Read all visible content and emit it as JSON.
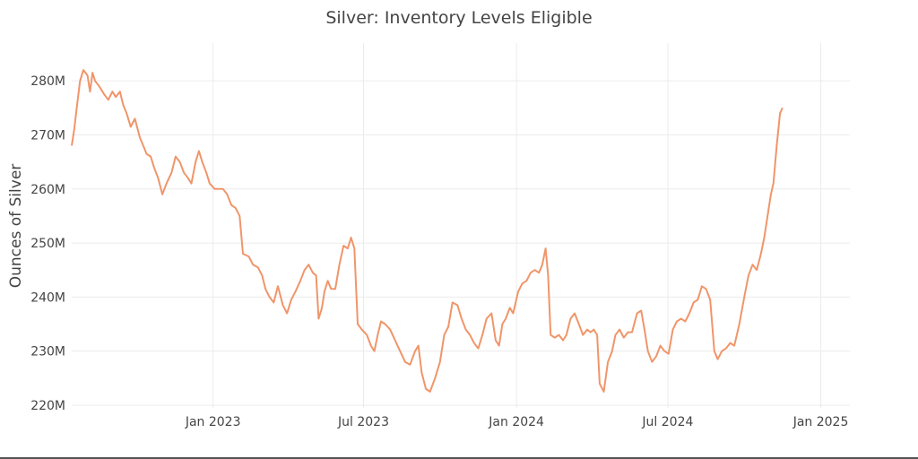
{
  "chart_data": {
    "type": "line",
    "title": "Silver: Inventory Levels Eligible",
    "xlabel": "",
    "ylabel": "Ounces of Silver",
    "ylim": [
      219500000,
      285000000
    ],
    "xlim": [
      "2022-07-15",
      "2025-02-05"
    ],
    "yticks": [
      {
        "value": 220000000,
        "label": "220M"
      },
      {
        "value": 230000000,
        "label": "230M"
      },
      {
        "value": 240000000,
        "label": "240M"
      },
      {
        "value": 250000000,
        "label": "250M"
      },
      {
        "value": 260000000,
        "label": "260M"
      },
      {
        "value": 270000000,
        "label": "270M"
      },
      {
        "value": 280000000,
        "label": "280M"
      }
    ],
    "xticks": [
      {
        "value": "2023-01-01",
        "label": "Jan 2023"
      },
      {
        "value": "2023-07-01",
        "label": "Jul 2023"
      },
      {
        "value": "2024-01-01",
        "label": "Jan 2024"
      },
      {
        "value": "2024-07-01",
        "label": "Jul 2024"
      },
      {
        "value": "2025-01-01",
        "label": "Jan 2025"
      }
    ],
    "grid": true,
    "legend": "none",
    "series": [
      {
        "color": "#f0956a",
        "points": [
          [
            "2022-07-15",
            268
          ],
          [
            "2022-07-18",
            271
          ],
          [
            "2022-07-21",
            275
          ],
          [
            "2022-07-25",
            280
          ],
          [
            "2022-07-29",
            282
          ],
          [
            "2022-08-03",
            281
          ],
          [
            "2022-08-06",
            278
          ],
          [
            "2022-08-09",
            281.5
          ],
          [
            "2022-08-12",
            280
          ],
          [
            "2022-08-17",
            279
          ],
          [
            "2022-08-23",
            277.5
          ],
          [
            "2022-08-28",
            276.5
          ],
          [
            "2022-09-02",
            278
          ],
          [
            "2022-09-06",
            277
          ],
          [
            "2022-09-11",
            278
          ],
          [
            "2022-09-15",
            275.5
          ],
          [
            "2022-09-19",
            274
          ],
          [
            "2022-09-24",
            271.5
          ],
          [
            "2022-09-29",
            273
          ],
          [
            "2022-10-05",
            269.5
          ],
          [
            "2022-10-09",
            268
          ],
          [
            "2022-10-13",
            266.5
          ],
          [
            "2022-10-18",
            266
          ],
          [
            "2022-10-22",
            264
          ],
          [
            "2022-10-27",
            262
          ],
          [
            "2022-11-01",
            259
          ],
          [
            "2022-11-06",
            261
          ],
          [
            "2022-11-12",
            263
          ],
          [
            "2022-11-17",
            266
          ],
          [
            "2022-11-22",
            265
          ],
          [
            "2022-11-27",
            263
          ],
          [
            "2022-12-02",
            262
          ],
          [
            "2022-12-06",
            261
          ],
          [
            "2022-12-11",
            265
          ],
          [
            "2022-12-15",
            267
          ],
          [
            "2022-12-19",
            265
          ],
          [
            "2022-12-24",
            263
          ],
          [
            "2022-12-28",
            261
          ],
          [
            "2023-01-03",
            260
          ],
          [
            "2023-01-08",
            260
          ],
          [
            "2023-01-13",
            260
          ],
          [
            "2023-01-18",
            259
          ],
          [
            "2023-01-23",
            257
          ],
          [
            "2023-01-28",
            256.5
          ],
          [
            "2023-02-02",
            255
          ],
          [
            "2023-02-06",
            248
          ],
          [
            "2023-02-13",
            247.5
          ],
          [
            "2023-02-18",
            246
          ],
          [
            "2023-02-24",
            245.5
          ],
          [
            "2023-03-01",
            244
          ],
          [
            "2023-03-05",
            241.5
          ],
          [
            "2023-03-10",
            240
          ],
          [
            "2023-03-15",
            239
          ],
          [
            "2023-03-20",
            242
          ],
          [
            "2023-03-26",
            238.5
          ],
          [
            "2023-03-31",
            237
          ],
          [
            "2023-04-05",
            239.5
          ],
          [
            "2023-04-10",
            241
          ],
          [
            "2023-04-16",
            243
          ],
          [
            "2023-04-21",
            245
          ],
          [
            "2023-04-26",
            246
          ],
          [
            "2023-05-01",
            244.5
          ],
          [
            "2023-05-05",
            244
          ],
          [
            "2023-05-08",
            236
          ],
          [
            "2023-05-12",
            238
          ],
          [
            "2023-05-15",
            241
          ],
          [
            "2023-05-19",
            243
          ],
          [
            "2023-05-23",
            241.5
          ],
          [
            "2023-05-28",
            241.5
          ],
          [
            "2023-06-02",
            246
          ],
          [
            "2023-06-07",
            249.5
          ],
          [
            "2023-06-12",
            249
          ],
          [
            "2023-06-16",
            251
          ],
          [
            "2023-06-20",
            249
          ],
          [
            "2023-06-24",
            235
          ],
          [
            "2023-06-29",
            234
          ],
          [
            "2023-07-05",
            233
          ],
          [
            "2023-07-10",
            231
          ],
          [
            "2023-07-14",
            230
          ],
          [
            "2023-07-18",
            233
          ],
          [
            "2023-07-22",
            235.5
          ],
          [
            "2023-07-27",
            235
          ],
          [
            "2023-08-02",
            234
          ],
          [
            "2023-08-08",
            232
          ],
          [
            "2023-08-14",
            230
          ],
          [
            "2023-08-20",
            228
          ],
          [
            "2023-08-26",
            227.5
          ],
          [
            "2023-09-01",
            230
          ],
          [
            "2023-09-05",
            231
          ],
          [
            "2023-09-09",
            226
          ],
          [
            "2023-09-14",
            223
          ],
          [
            "2023-09-19",
            222.5
          ],
          [
            "2023-09-25",
            225
          ],
          [
            "2023-10-01",
            228
          ],
          [
            "2023-10-06",
            233
          ],
          [
            "2023-10-11",
            234.5
          ],
          [
            "2023-10-16",
            239
          ],
          [
            "2023-10-22",
            238.5
          ],
          [
            "2023-10-27",
            236
          ],
          [
            "2023-11-01",
            234
          ],
          [
            "2023-11-06",
            233
          ],
          [
            "2023-11-11",
            231.5
          ],
          [
            "2023-11-16",
            230.5
          ],
          [
            "2023-11-21",
            233
          ],
          [
            "2023-11-26",
            236
          ],
          [
            "2023-12-02",
            237
          ],
          [
            "2023-12-07",
            232
          ],
          [
            "2023-12-11",
            231
          ],
          [
            "2023-12-15",
            235
          ],
          [
            "2023-12-19",
            236
          ],
          [
            "2023-12-24",
            238
          ],
          [
            "2023-12-28",
            237
          ],
          [
            "2024-01-03",
            241
          ],
          [
            "2024-01-08",
            242.5
          ],
          [
            "2024-01-13",
            243
          ],
          [
            "2024-01-18",
            244.5
          ],
          [
            "2024-01-23",
            245
          ],
          [
            "2024-01-28",
            244.5
          ],
          [
            "2024-02-01",
            246
          ],
          [
            "2024-02-05",
            249
          ],
          [
            "2024-02-08",
            244
          ],
          [
            "2024-02-11",
            233
          ],
          [
            "2024-02-16",
            232.5
          ],
          [
            "2024-02-21",
            233
          ],
          [
            "2024-02-26",
            232
          ],
          [
            "2024-03-01",
            233
          ],
          [
            "2024-03-06",
            236
          ],
          [
            "2024-03-11",
            237
          ],
          [
            "2024-03-16",
            235
          ],
          [
            "2024-03-21",
            233
          ],
          [
            "2024-03-26",
            234
          ],
          [
            "2024-03-30",
            233.5
          ],
          [
            "2024-04-03",
            234
          ],
          [
            "2024-04-07",
            233
          ],
          [
            "2024-04-10",
            224
          ],
          [
            "2024-04-15",
            222.5
          ],
          [
            "2024-04-20",
            228
          ],
          [
            "2024-04-25",
            230
          ],
          [
            "2024-04-29",
            233
          ],
          [
            "2024-05-04",
            234
          ],
          [
            "2024-05-09",
            232.5
          ],
          [
            "2024-05-14",
            233.5
          ],
          [
            "2024-05-19",
            233.5
          ],
          [
            "2024-05-25",
            237
          ],
          [
            "2024-05-30",
            237.5
          ],
          [
            "2024-06-03",
            234
          ],
          [
            "2024-06-07",
            230
          ],
          [
            "2024-06-12",
            228
          ],
          [
            "2024-06-17",
            229
          ],
          [
            "2024-06-22",
            231
          ],
          [
            "2024-06-27",
            230
          ],
          [
            "2024-07-02",
            229.5
          ],
          [
            "2024-07-07",
            234
          ],
          [
            "2024-07-12",
            235.5
          ],
          [
            "2024-07-17",
            236
          ],
          [
            "2024-07-22",
            235.5
          ],
          [
            "2024-07-27",
            237
          ],
          [
            "2024-08-01",
            239
          ],
          [
            "2024-08-06",
            239.5
          ],
          [
            "2024-08-11",
            242
          ],
          [
            "2024-08-16",
            241.5
          ],
          [
            "2024-08-21",
            239.5
          ],
          [
            "2024-08-26",
            230
          ],
          [
            "2024-08-30",
            228.5
          ],
          [
            "2024-09-04",
            230
          ],
          [
            "2024-09-09",
            230.5
          ],
          [
            "2024-09-14",
            231.5
          ],
          [
            "2024-09-19",
            231
          ],
          [
            "2024-09-25",
            235
          ],
          [
            "2024-10-01",
            240
          ],
          [
            "2024-10-06",
            244
          ],
          [
            "2024-10-11",
            246
          ],
          [
            "2024-10-16",
            245
          ],
          [
            "2024-10-21",
            248
          ],
          [
            "2024-10-25",
            251
          ],
          [
            "2024-10-29",
            255
          ],
          [
            "2024-11-02",
            259
          ],
          [
            "2024-11-05",
            261
          ],
          [
            "2024-11-09",
            268
          ],
          [
            "2024-11-13",
            274
          ],
          [
            "2024-11-16",
            275
          ]
        ]
      }
    ]
  }
}
